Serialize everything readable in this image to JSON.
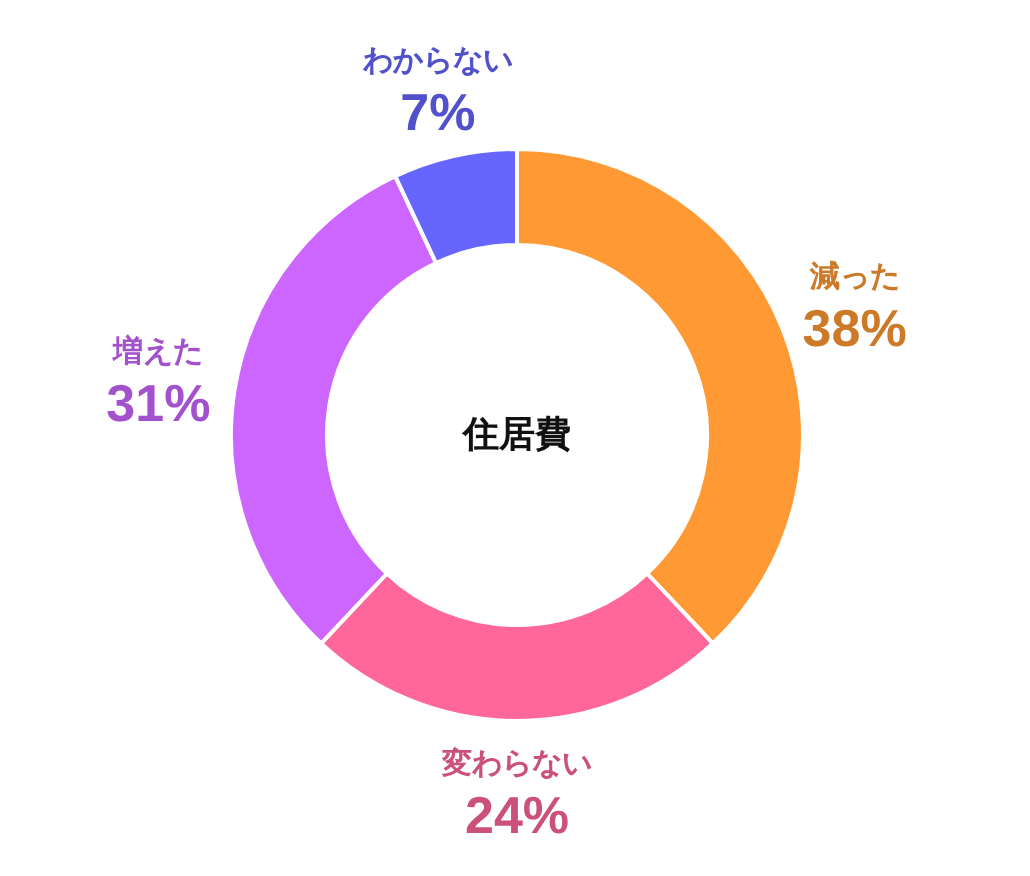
{
  "chart_data": {
    "type": "donut",
    "title": "住居費",
    "categories": [
      "減った",
      "変わらない",
      "増えた",
      "わからない"
    ],
    "values": [
      38,
      24,
      31,
      7
    ],
    "colors": [
      "#ff9933",
      "#ff6699",
      "#cc66ff",
      "#6666ff"
    ],
    "value_labels": [
      "38%",
      "24%",
      "31%",
      "7%"
    ]
  }
}
